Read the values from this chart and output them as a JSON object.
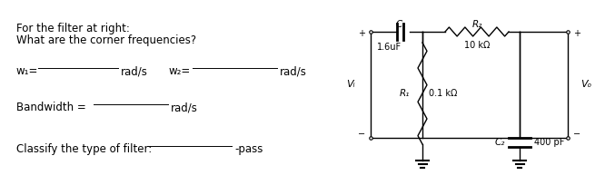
{
  "bg_color": "#ffffff",
  "left_text": {
    "line1": "For the filter at right:",
    "line2": "What are the corner frequencies?",
    "w1_label": "w₁=",
    "w1_unit": "rad/s",
    "w2_label": "w₂=",
    "w2_unit": "rad/s",
    "bandwidth_label": "Bandwidth =",
    "bandwidth_unit": "rad/s",
    "classify_label": "Classify the type of filter:",
    "classify_suffix": "-pass"
  },
  "circuit": {
    "c1_label": "C₁",
    "c1_value": "1.6uF",
    "r2_label": "R₂",
    "r2_value": "10 kΩ",
    "r1_label": "R₁",
    "r1_value": "0.1 kΩ",
    "c2_label": "C₂",
    "c2_value": "400 pF",
    "vi_label": "Vᵢ",
    "vo_label": "Vₒ"
  }
}
